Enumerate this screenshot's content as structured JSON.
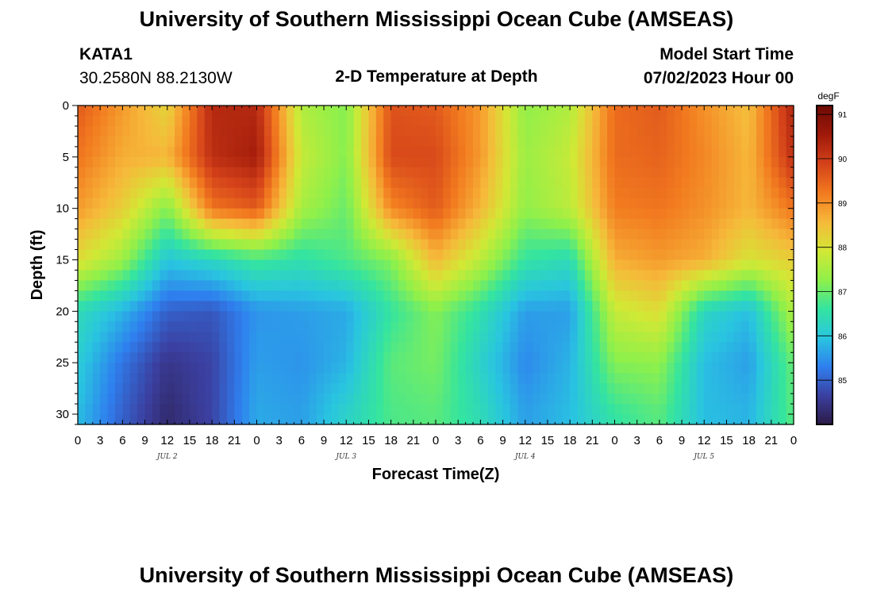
{
  "header": {
    "title": "University of Southern Mississippi Ocean Cube (AMSEAS)",
    "station": "KATA1",
    "coords": "30.2580N  88.2130W",
    "chart_title": "2-D Temperature at Depth",
    "model_start_label": "Model Start Time",
    "model_start_value": "07/02/2023 Hour 00"
  },
  "footer": {
    "title": "University of Southern Mississippi Ocean Cube (AMSEAS)"
  },
  "colors": {
    "palette": [
      "#2b1a45",
      "#3b3f9f",
      "#2f7fef",
      "#29c5e0",
      "#34e4a0",
      "#8ff04a",
      "#d2e835",
      "#f6b93a",
      "#f27a1f",
      "#d4421a",
      "#a01a0a",
      "#6e0b05"
    ]
  },
  "chart_data": {
    "type": "heatmap",
    "title": "2-D Temperature at Depth",
    "xlabel": "Forecast Time(Z)",
    "ylabel": "Depth (ft)",
    "x_tick_labels": [
      "0",
      "3",
      "6",
      "9",
      "12",
      "15",
      "18",
      "21",
      "0",
      "3",
      "6",
      "9",
      "12",
      "15",
      "18",
      "21",
      "0",
      "3",
      "6",
      "9",
      "12",
      "15",
      "18",
      "21",
      "0",
      "3",
      "6",
      "9",
      "12",
      "15",
      "18",
      "21",
      "0"
    ],
    "x_range_hours": [
      0,
      96
    ],
    "day_labels": [
      {
        "label": "JUL 2",
        "hour": 12
      },
      {
        "label": "JUL 3",
        "hour": 36
      },
      {
        "label": "JUL 4",
        "hour": 60
      },
      {
        "label": "JUL 5",
        "hour": 84
      }
    ],
    "y_tick_labels": [
      "0",
      "5",
      "10",
      "15",
      "20",
      "25",
      "30"
    ],
    "y_ticks": [
      0,
      5,
      10,
      15,
      20,
      25,
      30
    ],
    "ylim": [
      0,
      31
    ],
    "y_inverted": true,
    "colorbar": {
      "units": "degF",
      "range": [
        84,
        91.2
      ],
      "tick_values": [
        85,
        86,
        87,
        88,
        89,
        90,
        91
      ],
      "tick_labels": [
        "85",
        "86",
        "87",
        "88",
        "89",
        "90",
        "91"
      ]
    },
    "time_hours": [
      0,
      6,
      12,
      18,
      24,
      30,
      36,
      42,
      48,
      54,
      60,
      66,
      72,
      78,
      84,
      90,
      96
    ],
    "depth_ft": [
      0,
      5,
      10,
      15,
      20,
      25,
      30
    ],
    "values_degF": [
      [
        89.6,
        88.9,
        88.2,
        90.3,
        90.3,
        87.6,
        87.2,
        89.7,
        89.6,
        88.9,
        87.3,
        87.6,
        89.4,
        89.6,
        89.0,
        88.5,
        90.4
      ],
      [
        89.3,
        88.7,
        88.6,
        90.2,
        90.5,
        87.8,
        87.2,
        89.8,
        89.8,
        88.9,
        87.4,
        87.8,
        89.4,
        89.5,
        89.1,
        88.6,
        90.2
      ],
      [
        88.9,
        88.3,
        87.2,
        89.3,
        89.6,
        87.5,
        87.0,
        89.1,
        89.6,
        88.6,
        87.3,
        87.7,
        89.2,
        89.3,
        89.0,
        88.6,
        89.3
      ],
      [
        88.1,
        87.4,
        86.0,
        86.3,
        86.7,
        86.5,
        86.8,
        87.2,
        88.6,
        87.7,
        86.6,
        86.4,
        88.7,
        88.9,
        88.7,
        88.0,
        88.3
      ],
      [
        86.4,
        85.8,
        85.0,
        84.9,
        85.5,
        85.6,
        85.7,
        86.6,
        87.2,
        86.5,
        85.6,
        85.6,
        87.8,
        88.1,
        86.3,
        85.9,
        87.6
      ],
      [
        86.1,
        85.2,
        84.5,
        84.7,
        85.6,
        85.5,
        85.8,
        86.9,
        87.1,
        86.2,
        85.4,
        85.8,
        87.2,
        87.3,
        85.9,
        85.6,
        87.0
      ],
      [
        85.9,
        85.0,
        84.3,
        84.7,
        85.7,
        85.6,
        86.2,
        86.8,
        86.9,
        86.4,
        85.6,
        85.9,
        86.6,
        86.9,
        85.9,
        85.8,
        86.9
      ]
    ]
  }
}
